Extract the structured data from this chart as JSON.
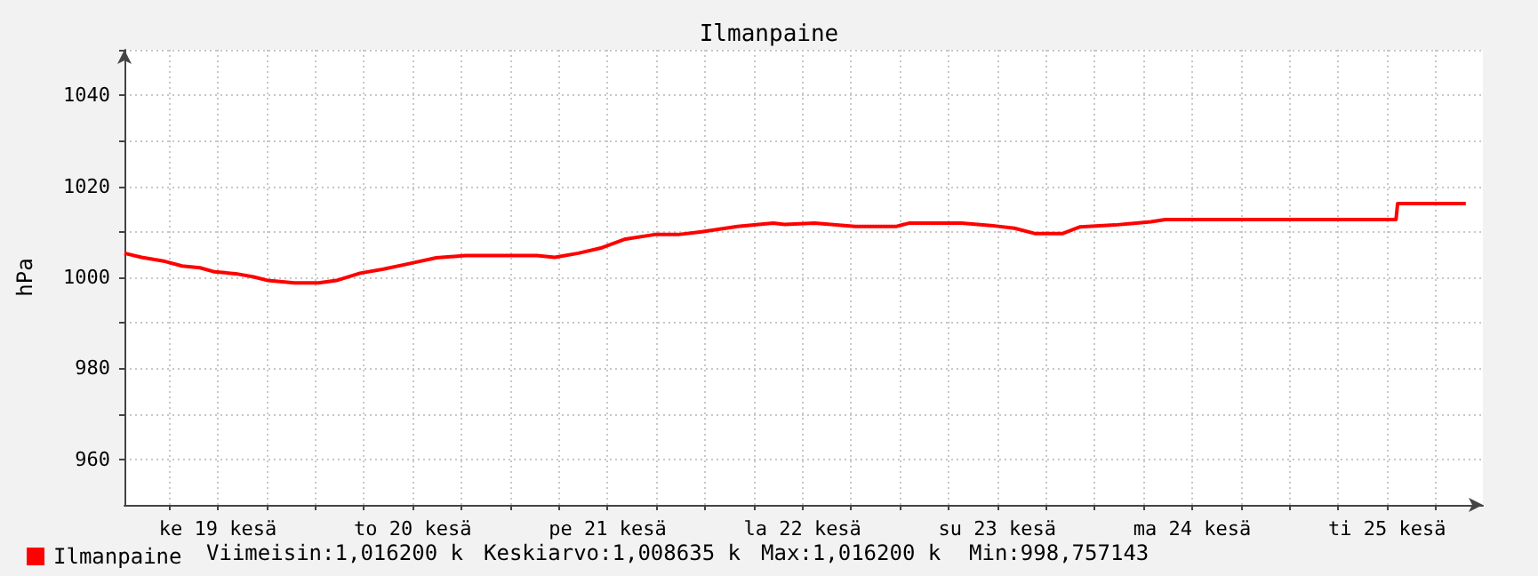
{
  "chart_data": {
    "type": "line",
    "title": "Ilmanpaine",
    "ylabel": "hPa",
    "x": [
      "--06-19T00:30",
      "--06-19T02:36",
      "--06-19T05:30",
      "--06-19T07:36",
      "--06-19T09:48",
      "--06-19T11:36",
      "--06-19T14:12",
      "--06-19T16:24",
      "--06-19T18:12",
      "--06-19T21:24",
      "--06-20T00:24",
      "--06-20T02:36",
      "--06-20T05:30",
      "--06-20T08:24",
      "--06-20T11:18",
      "--06-20T14:54",
      "--06-20T18:30",
      "--06-20T23:36",
      "--06-21T03:18",
      "--06-21T05:30",
      "--06-21T08:24",
      "--06-21T11:18",
      "--06-21T14:12",
      "--06-21T17:48",
      "--06-21T20:42",
      "--06-21T23:36",
      "--06-22T04:00",
      "--06-22T08:24",
      "--06-22T09:48",
      "--06-22T13:30",
      "--06-22T18:30",
      "--06-22T23:36",
      "--06-23T01:06",
      "--06-23T07:36",
      "--06-23T11:12",
      "--06-23T14:06",
      "--06-23T16:42",
      "--06-23T20:00",
      "--06-23T22:12",
      "--06-24T02:30",
      "--06-24T06:54",
      "--06-24T08:42",
      "--06-25T13:06",
      "--06-25T13:18",
      "--06-25T21:42"
    ],
    "series": [
      {
        "name": "Ilmanpaine",
        "color": "#ff0000",
        "values": [
          1005.3,
          1004.4,
          1003.5,
          1002.5,
          1002.1,
          1001.2,
          1000.8,
          1000.1,
          999.3,
          998.8,
          998.8,
          999.3,
          1000.9,
          1001.8,
          1002.9,
          1004.3,
          1004.8,
          1004.8,
          1004.8,
          1004.4,
          1005.3,
          1006.5,
          1008.4,
          1009.4,
          1009.4,
          1010.0,
          1011.2,
          1011.9,
          1011.6,
          1011.9,
          1011.2,
          1011.2,
          1011.9,
          1011.9,
          1011.4,
          1010.8,
          1009.6,
          1009.6,
          1011.1,
          1011.5,
          1012.2,
          1012.7,
          1012.7,
          1016.2,
          1016.2
        ]
      }
    ],
    "xlim": [
      "--06-19T00:30",
      "--06-25T23:48"
    ],
    "xticks": [
      {
        "value": "--06-19T06:00",
        "label": null
      },
      {
        "value": "--06-19T12:00",
        "label": "ke 19 kesä"
      },
      {
        "value": "--06-19T18:00",
        "label": null
      },
      {
        "value": "--06-20T00:00",
        "label": null
      },
      {
        "value": "--06-20T06:00",
        "label": null
      },
      {
        "value": "--06-20T12:00",
        "label": "to 20 kesä"
      },
      {
        "value": "--06-20T18:00",
        "label": null
      },
      {
        "value": "--06-21T00:00",
        "label": null
      },
      {
        "value": "--06-21T06:00",
        "label": null
      },
      {
        "value": "--06-21T12:00",
        "label": "pe 21 kesä"
      },
      {
        "value": "--06-21T18:00",
        "label": null
      },
      {
        "value": "--06-22T00:00",
        "label": null
      },
      {
        "value": "--06-22T06:00",
        "label": null
      },
      {
        "value": "--06-22T12:00",
        "label": "la 22 kesä"
      },
      {
        "value": "--06-22T18:00",
        "label": null
      },
      {
        "value": "--06-23T00:00",
        "label": null
      },
      {
        "value": "--06-23T06:00",
        "label": null
      },
      {
        "value": "--06-23T12:00",
        "label": "su 23 kesä"
      },
      {
        "value": "--06-23T18:00",
        "label": null
      },
      {
        "value": "--06-24T00:00",
        "label": null
      },
      {
        "value": "--06-24T06:00",
        "label": null
      },
      {
        "value": "--06-24T12:00",
        "label": "ma 24 kesä"
      },
      {
        "value": "--06-24T18:00",
        "label": null
      },
      {
        "value": "--06-25T00:00",
        "label": null
      },
      {
        "value": "--06-25T06:00",
        "label": null
      },
      {
        "value": "--06-25T12:00",
        "label": "ti 25 kesä"
      },
      {
        "value": "--06-25T18:00",
        "label": null
      }
    ],
    "ylim": [
      950,
      1050
    ],
    "yticks": [
      {
        "value": 970,
        "label": null
      },
      960,
      980,
      {
        "value": 990,
        "label": null
      },
      1000,
      {
        "value": 1010,
        "label": null
      },
      1020,
      {
        "value": 1030,
        "label": null
      },
      1040,
      {
        "value": 1050,
        "label": null
      }
    ],
    "grid": true,
    "legend": "bottom left",
    "marker": "none",
    "line_style": "solid",
    "annotations": [
      "Viimeisin:1,016200 k",
      "Keskiarvo:1,008635 k",
      "Max:1,016200 k",
      "Min:998,757143"
    ]
  }
}
